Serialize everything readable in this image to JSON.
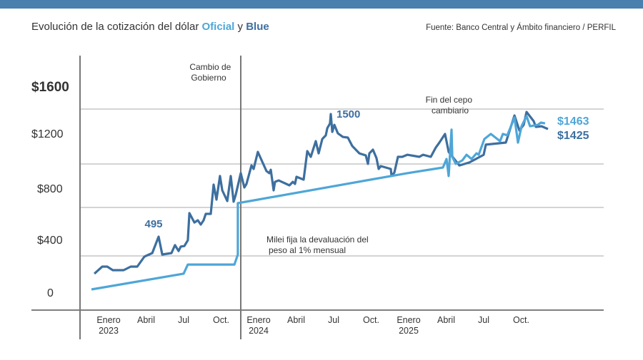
{
  "header": {
    "band_color": "#4a80ae"
  },
  "title": {
    "prefix": "Evolución de la cotización del dólar ",
    "oficial": "Oficial",
    "joiner": " y ",
    "blue": "Blue"
  },
  "source": "Fuente: Banco Central y Ámbito financiero / PERFIL",
  "chart_data": {
    "type": "line",
    "title": "Evolución de la cotización del dólar Oficial y Blue",
    "xlabel": "",
    "ylabel": "",
    "x_unit": "months since Enero 2023",
    "ylim": [
      0,
      1600
    ],
    "grid": true,
    "y_ticks": [
      {
        "label": "$1600",
        "value": 1600
      },
      {
        "label": "$1200",
        "value": 1200
      },
      {
        "label": "$800",
        "value": 800
      },
      {
        "label": "$400",
        "value": 400
      },
      {
        "label": "0",
        "value": 0
      }
    ],
    "x_ticks": [
      {
        "label": "Enero",
        "year": "2023",
        "m": 0
      },
      {
        "label": "Abril",
        "year": "",
        "m": 3
      },
      {
        "label": "Jul",
        "year": "",
        "m": 6
      },
      {
        "label": "Oct.",
        "year": "",
        "m": 9
      },
      {
        "label": "Enero",
        "year": "2024",
        "m": 12
      },
      {
        "label": "Abril",
        "year": "",
        "m": 15
      },
      {
        "label": "Jul",
        "year": "",
        "m": 18
      },
      {
        "label": "Oct.",
        "year": "",
        "m": 21
      },
      {
        "label": "Enero",
        "year": "2025",
        "m": 24
      },
      {
        "label": "Abril",
        "year": "",
        "m": 27
      },
      {
        "label": "Jul",
        "year": "",
        "m": 30
      },
      {
        "label": "Oct.",
        "year": "",
        "m": 33
      }
    ],
    "series": [
      {
        "name": "Blue",
        "color": "#3d6f9f",
        "points": [
          [
            -1.14,
            144
          ],
          [
            -0.51,
            199
          ],
          [
            -0.11,
            199
          ],
          [
            0.34,
            171
          ],
          [
            1.2,
            171
          ],
          [
            1.77,
            199
          ],
          [
            2.29,
            199
          ],
          [
            2.86,
            276
          ],
          [
            3.49,
            304
          ],
          [
            4.0,
            431
          ],
          [
            4.29,
            293
          ],
          [
            5.03,
            304
          ],
          [
            5.31,
            365
          ],
          [
            5.6,
            320
          ],
          [
            5.77,
            354
          ],
          [
            6.06,
            359
          ],
          [
            6.34,
            403
          ],
          [
            6.46,
            613
          ],
          [
            6.86,
            541
          ],
          [
            7.14,
            558
          ],
          [
            7.37,
            525
          ],
          [
            7.6,
            558
          ],
          [
            7.77,
            608
          ],
          [
            8.17,
            608
          ],
          [
            8.4,
            834
          ],
          [
            8.63,
            718
          ],
          [
            8.91,
            901
          ],
          [
            9.09,
            790
          ],
          [
            9.49,
            707
          ],
          [
            9.77,
            901
          ],
          [
            10.0,
            702
          ],
          [
            10.17,
            757
          ],
          [
            10.57,
            923
          ],
          [
            10.86,
            812
          ],
          [
            11.03,
            840
          ],
          [
            11.43,
            983
          ],
          [
            11.6,
            956
          ],
          [
            11.94,
            1088
          ],
          [
            12.63,
            939
          ],
          [
            12.86,
            923
          ],
          [
            12.97,
            950
          ],
          [
            13.2,
            790
          ],
          [
            13.31,
            856
          ],
          [
            13.6,
            867
          ],
          [
            14.46,
            829
          ],
          [
            14.74,
            856
          ],
          [
            14.91,
            840
          ],
          [
            15.03,
            895
          ],
          [
            15.6,
            873
          ],
          [
            15.89,
            1094
          ],
          [
            16.17,
            1050
          ],
          [
            16.57,
            1171
          ],
          [
            16.8,
            1077
          ],
          [
            17.09,
            1188
          ],
          [
            17.37,
            1216
          ],
          [
            17.49,
            1271
          ],
          [
            17.71,
            1309
          ],
          [
            17.77,
            1381
          ],
          [
            17.89,
            1243
          ],
          [
            18.06,
            1298
          ],
          [
            18.34,
            1232
          ],
          [
            18.74,
            1204
          ],
          [
            19.14,
            1199
          ],
          [
            19.49,
            1133
          ],
          [
            20.06,
            1077
          ],
          [
            20.57,
            1061
          ],
          [
            20.74,
            995
          ],
          [
            20.86,
            1077
          ],
          [
            21.14,
            1105
          ],
          [
            21.43,
            1039
          ],
          [
            21.6,
            956
          ],
          [
            21.77,
            978
          ],
          [
            22.57,
            956
          ],
          [
            22.63,
            901
          ],
          [
            22.86,
            928
          ],
          [
            23.14,
            1050
          ],
          [
            23.49,
            1050
          ],
          [
            23.89,
            1066
          ],
          [
            24.86,
            1050
          ],
          [
            25.14,
            1066
          ],
          [
            25.77,
            1050
          ],
          [
            26.17,
            1122
          ],
          [
            26.46,
            1160
          ],
          [
            26.91,
            1227
          ],
          [
            27.2,
            1088
          ],
          [
            28.06,
            983
          ],
          [
            28.86,
            1006
          ],
          [
            30.0,
            1066
          ],
          [
            30.17,
            1144
          ],
          [
            31.77,
            1160
          ],
          [
            32.46,
            1370
          ],
          [
            32.86,
            1254
          ],
          [
            33.2,
            1298
          ],
          [
            33.43,
            1398
          ],
          [
            34.0,
            1326
          ],
          [
            34.17,
            1282
          ],
          [
            34.63,
            1287
          ],
          [
            35.14,
            1265
          ]
        ]
      },
      {
        "name": "Oficial",
        "color": "#4ea6d8",
        "points": [
          [
            -1.37,
            22
          ],
          [
            6.0,
            144
          ],
          [
            6.34,
            215
          ],
          [
            10.06,
            215
          ],
          [
            10.34,
            293
          ],
          [
            10.34,
            691
          ],
          [
            11.31,
            707
          ],
          [
            23.89,
            923
          ],
          [
            26.74,
            967
          ],
          [
            27.03,
            1033
          ],
          [
            27.2,
            901
          ],
          [
            27.43,
            1260
          ],
          [
            27.49,
            1050
          ],
          [
            27.77,
            995
          ],
          [
            28.29,
            1022
          ],
          [
            28.63,
            1066
          ],
          [
            29.03,
            1033
          ],
          [
            29.43,
            1077
          ],
          [
            29.6,
            1066
          ],
          [
            30.06,
            1188
          ],
          [
            30.57,
            1227
          ],
          [
            31.31,
            1171
          ],
          [
            31.54,
            1227
          ],
          [
            31.89,
            1216
          ],
          [
            32.46,
            1354
          ],
          [
            32.74,
            1160
          ],
          [
            33.03,
            1287
          ],
          [
            33.43,
            1365
          ],
          [
            33.71,
            1287
          ],
          [
            34.34,
            1298
          ],
          [
            34.57,
            1315
          ],
          [
            34.91,
            1309
          ]
        ]
      }
    ],
    "data_labels": [
      {
        "text": "495",
        "series": "Blue"
      },
      {
        "text": "1500",
        "series": "Blue"
      },
      {
        "text": "$1463",
        "series": "Oficial"
      },
      {
        "text": "$1425",
        "series": "Blue"
      }
    ],
    "annotations": {
      "cambio_1": "Cambio de",
      "cambio_2": "Gobierno",
      "cepo_1": "Fin del cepo",
      "cepo_2": "cambiario",
      "milei_1": "Milei fija la devaluación del",
      "milei_2": "peso al 1% mensual"
    }
  }
}
